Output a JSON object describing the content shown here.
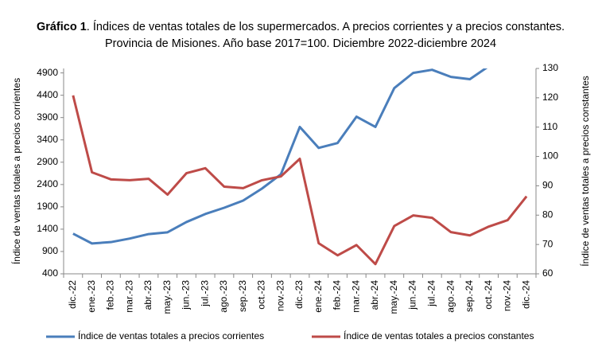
{
  "chart_data": {
    "type": "line",
    "title_bold": "Gráfico 1",
    "title": ". Índices de ventas totales de los supermercados. A precios corrientes y a precios constantes.",
    "subtitle": "Provincia de Misiones. Año base 2017=100. Diciembre 2022-diciembre 2024",
    "y_label": "Índice de ventas totales a precios corrientes",
    "y2_label": "Índice de ventas totales a precios constantes",
    "categories": [
      "dic.-22",
      "ene.-23",
      "feb.-23",
      "mar.-23",
      "abr.-23",
      "may.-23",
      "jun.-23",
      "jul.-23",
      "ago.-23",
      "sep.-23",
      "oct.-23",
      "nov.-23",
      "dic.-23",
      "ene.-24",
      "feb.-24",
      "mar.-24",
      "abr.-24",
      "may.-24",
      "jun.-24",
      "jul.-24",
      "ago.-24",
      "sep.-24",
      "oct.-24",
      "nov.-24",
      "dic.-24"
    ],
    "series": [
      {
        "name": "Índice de ventas totales a precios corrientes",
        "color": "#4a7ebb",
        "axis": "y",
        "values": [
          1300,
          1080,
          1110,
          1190,
          1290,
          1330,
          1560,
          1740,
          1880,
          2040,
          2310,
          2630,
          3690,
          3220,
          3330,
          3920,
          3690,
          4560,
          4900,
          4970,
          4810,
          4760,
          5050,
          null,
          null
        ]
      },
      {
        "name": "Índice de ventas totales a precios constantes",
        "color": "#be4b48",
        "axis": "y2",
        "values": [
          120.8,
          94.6,
          92.2,
          91.9,
          92.4,
          87,
          94.3,
          96,
          89.7,
          89.2,
          91.9,
          93.2,
          99.2,
          70.4,
          66.3,
          69.8,
          63.3,
          76.3,
          79.9,
          79.1,
          74.2,
          73.1,
          76.1,
          78.3,
          86.4
        ]
      }
    ],
    "ylim": [
      400,
      5000
    ],
    "yticks": [
      400,
      900,
      1400,
      1900,
      2400,
      2900,
      3400,
      3900,
      4400,
      4900
    ],
    "y2lim": [
      60,
      130
    ],
    "y2ticks": [
      60,
      70,
      80,
      90,
      100,
      110,
      120,
      130
    ],
    "grid": false,
    "legend": "bottom"
  }
}
